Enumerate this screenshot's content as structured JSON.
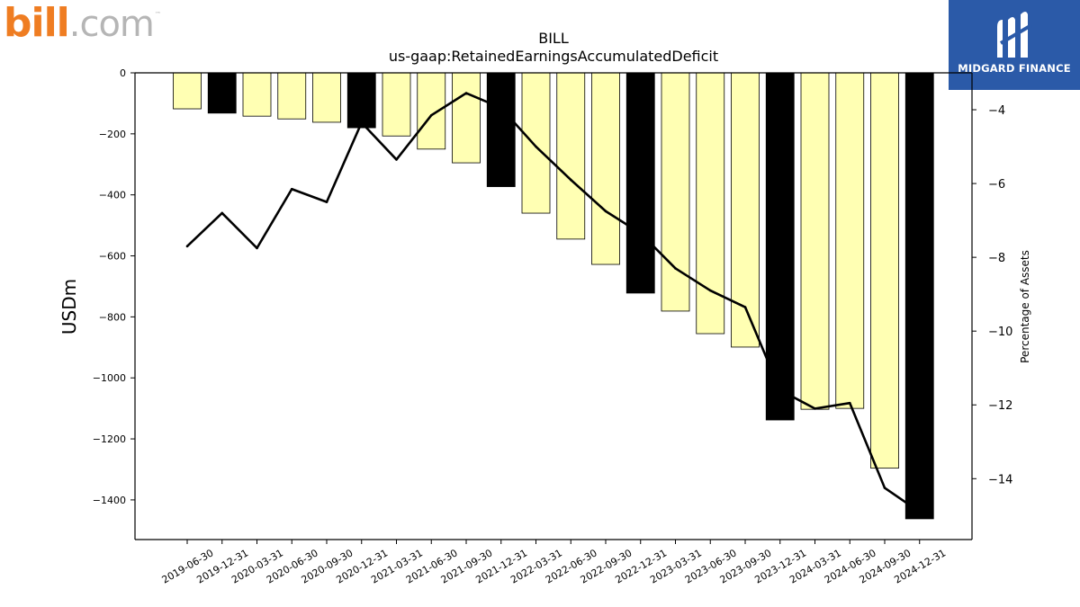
{
  "logos": {
    "left_brand": "bill",
    "left_suffix": ".com",
    "left_tm": "™",
    "right_brand": "MIDGARD FINANCE"
  },
  "colors": {
    "bar_regular": "#ffffb3",
    "bar_annual": "#000000",
    "line": "#000000",
    "right_logo_bg": "#2b5aa8"
  },
  "chart_data": {
    "type": "bar",
    "title": "BILL",
    "subtitle": "us-gaap:RetainedEarningsAccumulatedDeficit",
    "ylabel": "USDm",
    "y2label": "Percentage of Assets",
    "ylim": [
      -1530,
      0
    ],
    "y2lim": [
      -15.65,
      -3.0
    ],
    "yticks": [
      0,
      -200,
      -400,
      -600,
      -800,
      -1000,
      -1200,
      -1400
    ],
    "y2ticks": [
      -4,
      -6,
      -8,
      -10,
      -12,
      -14
    ],
    "categories": [
      "2019-06-30",
      "2019-12-31",
      "2020-03-31",
      "2020-06-30",
      "2020-09-30",
      "2020-12-31",
      "2021-03-31",
      "2021-06-30",
      "2021-09-30",
      "2021-12-31",
      "2022-03-31",
      "2022-06-30",
      "2022-09-30",
      "2022-12-31",
      "2023-03-31",
      "2023-06-30",
      "2023-09-30",
      "2023-12-31",
      "2024-03-31",
      "2024-06-30",
      "2024-09-30",
      "2024-12-31"
    ],
    "series": [
      {
        "type": "bar",
        "axis": "left",
        "values": [
          -118,
          -132,
          -142,
          -151,
          -162,
          -180,
          -207,
          -250,
          -295,
          -373,
          -460,
          -545,
          -628,
          -722,
          -781,
          -855,
          -899,
          -1138,
          -1103,
          -1100,
          -1296,
          -1462
        ],
        "annual": [
          false,
          true,
          false,
          false,
          false,
          true,
          false,
          false,
          false,
          true,
          false,
          false,
          false,
          true,
          false,
          false,
          false,
          true,
          false,
          false,
          false,
          true
        ]
      },
      {
        "type": "line",
        "axis": "right",
        "values": [
          -7.7,
          -6.8,
          -7.75,
          -6.15,
          -6.5,
          -4.35,
          -5.35,
          -4.15,
          -3.55,
          -3.95,
          -5.0,
          -5.9,
          -6.75,
          -7.35,
          -8.3,
          -8.9,
          -9.35,
          -11.6,
          -12.1,
          -11.95,
          -14.25,
          -14.9
        ]
      }
    ],
    "grid": false,
    "legend": "none"
  }
}
